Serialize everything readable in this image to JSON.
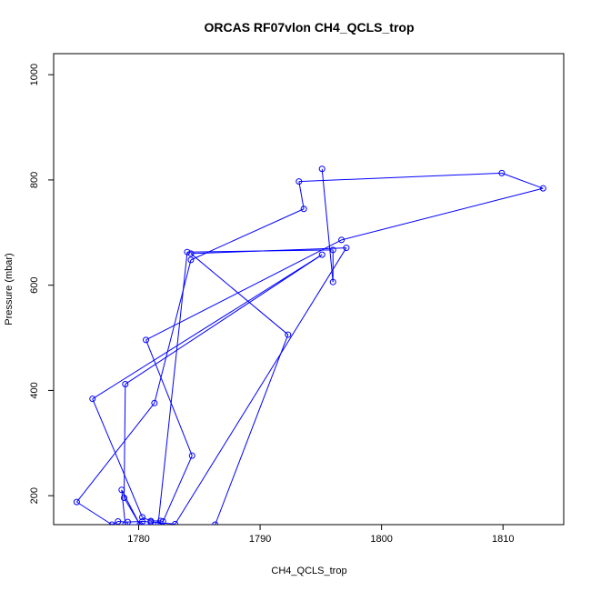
{
  "chart_data": {
    "type": "line",
    "title": "ORCAS RF07vlon CH4_QCLS_trop",
    "xlabel": "CH4_QCLS_trop",
    "ylabel": "Pressure (mbar)",
    "xlim": [
      1773.0,
      1815.0
    ],
    "ylim": [
      1040,
      145
    ],
    "y_reversed": true,
    "x_ticks": [
      "1780",
      "1790",
      "1800",
      "1810"
    ],
    "x_tick_values": [
      1780,
      1790,
      1800,
      1810
    ],
    "y_ticks": [
      "200",
      "400",
      "600",
      "800",
      "1000"
    ],
    "y_tick_values": [
      200,
      400,
      600,
      800,
      1000
    ],
    "grid": false,
    "series_color": "#0000ff",
    "points": [
      {
        "x": 1786.3,
        "y": 145
      },
      {
        "x": 1792.3,
        "y": 506
      },
      {
        "x": 1784.3,
        "y": 660
      },
      {
        "x": 1797.1,
        "y": 671
      },
      {
        "x": 1783.0,
        "y": 146
      },
      {
        "x": 1781.0,
        "y": 150
      },
      {
        "x": 1780.3,
        "y": 151
      },
      {
        "x": 1779.1,
        "y": 150
      },
      {
        "x": 1778.3,
        "y": 151
      },
      {
        "x": 1777.8,
        "y": 145
      },
      {
        "x": 1774.9,
        "y": 188
      },
      {
        "x": 1781.3,
        "y": 376
      },
      {
        "x": 1784.3,
        "y": 648
      },
      {
        "x": 1793.6,
        "y": 745
      },
      {
        "x": 1793.2,
        "y": 797
      },
      {
        "x": 1809.9,
        "y": 813
      },
      {
        "x": 1813.3,
        "y": 784
      },
      {
        "x": 1796.7,
        "y": 686
      },
      {
        "x": 1780.6,
        "y": 496
      },
      {
        "x": 1784.4,
        "y": 276
      },
      {
        "x": 1782.0,
        "y": 151
      },
      {
        "x": 1781.8,
        "y": 152
      },
      {
        "x": 1781.0,
        "y": 152
      },
      {
        "x": 1780.3,
        "y": 159
      },
      {
        "x": 1776.2,
        "y": 384
      },
      {
        "x": 1795.1,
        "y": 658
      },
      {
        "x": 1778.9,
        "y": 412
      },
      {
        "x": 1778.8,
        "y": 196
      },
      {
        "x": 1780.1,
        "y": 145
      },
      {
        "x": 1778.6,
        "y": 211
      },
      {
        "x": 1778.9,
        "y": 145
      },
      {
        "x": 1781.6,
        "y": 145
      },
      {
        "x": 1784.0,
        "y": 663
      },
      {
        "x": 1796.0,
        "y": 667
      },
      {
        "x": 1796.0,
        "y": 606
      },
      {
        "x": 1795.1,
        "y": 821
      }
    ]
  }
}
